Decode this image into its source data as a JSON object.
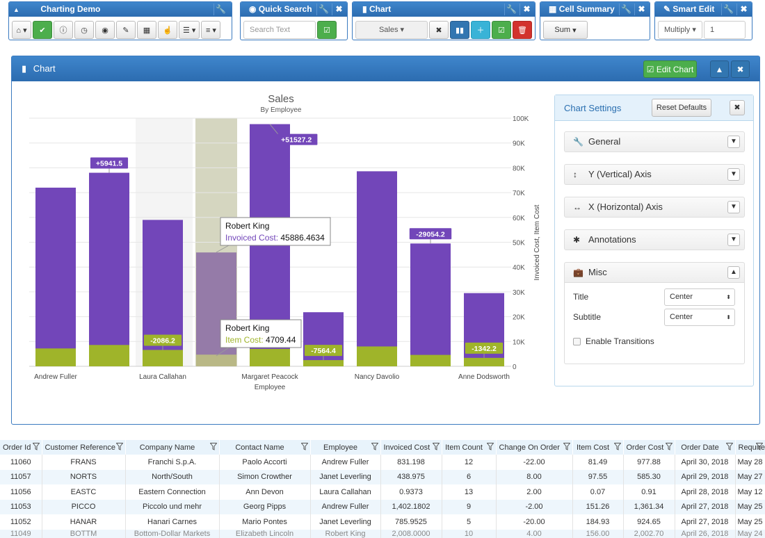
{
  "toolbars": {
    "charting": {
      "title": "Charting Demo"
    },
    "search": {
      "title": "Quick Search",
      "placeholder": "Search Text"
    },
    "chart": {
      "title": "Chart",
      "select": "Sales"
    },
    "summary": {
      "title": "Cell Summary",
      "select": "Sum"
    },
    "smart": {
      "title": "Smart Edit",
      "select": "Multiply",
      "value": "1"
    }
  },
  "panel": {
    "title": "Chart",
    "edit_button": "Edit Chart"
  },
  "chart_data": {
    "type": "bar",
    "title": "Sales",
    "subtitle": "By Employee",
    "xlabel": "Employee",
    "ylabel": "Invoiced Cost, Item Cost",
    "ylim": [
      0,
      100000
    ],
    "yticks": [
      "0",
      "10K",
      "20K",
      "30K",
      "40K",
      "50K",
      "60K",
      "70K",
      "80K",
      "90K",
      "100K"
    ],
    "categories": [
      "Andrew Fuller",
      "",
      "Laura Callahan",
      "Robert King",
      "Margaret Peacock",
      "",
      "Nancy Davolio",
      "",
      "Anne Dodsworth"
    ],
    "xticks": [
      {
        "index": 0,
        "label": "Andrew Fuller"
      },
      {
        "index": 2,
        "label": "Laura Callahan"
      },
      {
        "index": 4,
        "label": "Margaret Peacock"
      },
      {
        "index": 6,
        "label": "Nancy Davolio"
      },
      {
        "index": 8,
        "label": "Anne Dodsworth"
      }
    ],
    "series": [
      {
        "name": "Invoiced Cost",
        "color": "#7246b9",
        "values": [
          72000,
          78000,
          59000,
          45886.4634,
          97600,
          21800,
          78600,
          49500,
          29500
        ]
      },
      {
        "name": "Item Cost",
        "color": "#9fb42a",
        "values": [
          7200,
          8600,
          6600,
          4709.44,
          7000,
          2500,
          8000,
          4600,
          3400
        ]
      }
    ],
    "annotations": [
      {
        "index": 1,
        "text": "+5941.5",
        "color": "#7246b9"
      },
      {
        "index": 2,
        "text": "-2086.2",
        "color": "#9fb42a"
      },
      {
        "index": 4,
        "text": "+51527.2",
        "color": "#7246b9"
      },
      {
        "index": 5,
        "text": "-7564.4",
        "color": "#9fb42a"
      },
      {
        "index": 7,
        "text": "-29054.2",
        "color": "#7246b9"
      },
      {
        "index": 8,
        "text": "-1342.2",
        "color": "#9fb42a"
      }
    ],
    "tooltips": [
      {
        "name": "Robert King",
        "label": "Invoiced Cost:",
        "value": "45886.4634",
        "color": "#7246b9"
      },
      {
        "name": "Robert King",
        "label": "Item Cost:",
        "value": "4709.44",
        "color": "#9fb42a"
      }
    ]
  },
  "settings": {
    "title": "Chart Settings",
    "reset": "Reset Defaults",
    "sections": [
      "General",
      "Y (Vertical) Axis",
      "X (Horizontal) Axis",
      "Annotations",
      "Misc"
    ],
    "title_label": "Title",
    "title_value": "Center",
    "subtitle_label": "Subtitle",
    "subtitle_value": "Center",
    "transitions_label": "Enable Transitions"
  },
  "grid": {
    "columns": [
      "Order Id",
      "Customer Reference",
      "Company Name",
      "Contact Name",
      "Employee",
      "Invoiced Cost",
      "Item Count",
      "Change On Order",
      "Item Cost",
      "Order Cost",
      "Order Date",
      "Required"
    ],
    "rows": [
      [
        "11060",
        "FRANS",
        "Franchi S.p.A.",
        "Paolo Accorti",
        "Andrew Fuller",
        "831.198",
        "12",
        "-22.00",
        "81.49",
        "977.88",
        "April 30, 2018",
        "May 28"
      ],
      [
        "11057",
        "NORTS",
        "North/South",
        "Simon Crowther",
        "Janet Leverling",
        "438.975",
        "6",
        "8.00",
        "97.55",
        "585.30",
        "April 29, 2018",
        "May 27"
      ],
      [
        "11056",
        "EASTC",
        "Eastern Connection",
        "Ann Devon",
        "Laura Callahan",
        "0.9373",
        "13",
        "2.00",
        "0.07",
        "0.91",
        "April 28, 2018",
        "May 12"
      ],
      [
        "11053",
        "PICCO",
        "Piccolo und mehr",
        "Georg Pipps",
        "Andrew Fuller",
        "1,402.1802",
        "9",
        "-2.00",
        "151.26",
        "1,361.34",
        "April 27, 2018",
        "May 25"
      ],
      [
        "11052",
        "HANAR",
        "Hanari Carnes",
        "Mario Pontes",
        "Janet Leverling",
        "785.9525",
        "5",
        "-20.00",
        "184.93",
        "924.65",
        "April 27, 2018",
        "May 25"
      ],
      [
        "11049",
        "BOTTM",
        "Bottom-Dollar Markets",
        "Elizabeth Lincoln",
        "Robert King",
        "2,008.0000",
        "10",
        "4.00",
        "156.00",
        "2,002.70",
        "April 26, 2018",
        "May 24"
      ]
    ]
  }
}
